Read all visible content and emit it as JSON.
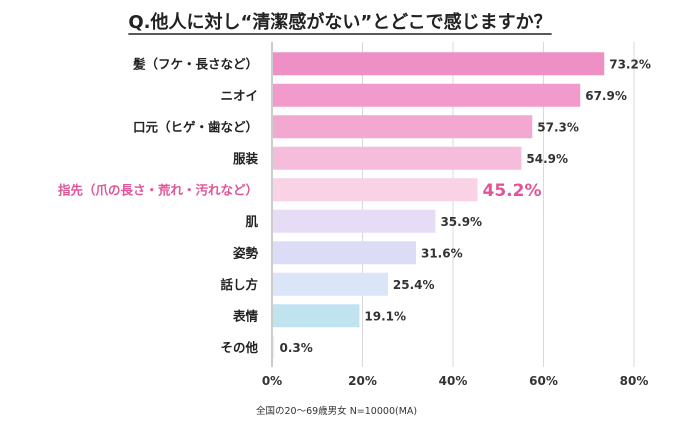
{
  "chart_data": {
    "type": "bar",
    "orientation": "horizontal",
    "title": "Q.他人に対し“清潔感がない”とどこで感じますか？",
    "categories": [
      "髪（フケ・長さなど）",
      "ニオイ",
      "口元（ヒゲ・歯など）",
      "服装",
      "指先（爪の長さ・荒れ・汚れなど）",
      "肌",
      "姿勢",
      "話し方",
      "表情",
      "その他"
    ],
    "values": [
      73.2,
      67.9,
      57.3,
      54.9,
      45.2,
      35.9,
      31.6,
      25.4,
      19.1,
      0.3
    ],
    "value_labels": [
      "73.2%",
      "67.9%",
      "57.3%",
      "54.9%",
      "45.2%",
      "35.9%",
      "31.6%",
      "25.4%",
      "19.1%",
      "0.3%"
    ],
    "highlight_index": 4,
    "bar_colors": [
      "#ee8fc6",
      "#f19acb",
      "#f3a8d2",
      "#f6bcdc",
      "#f9d2e6",
      "#e6dcf6",
      "#dcdcf7",
      "#dae6f7",
      "#bfe3ef",
      "#e6f2f9"
    ],
    "highlight_color": "#e0559a",
    "xlim": [
      0,
      80
    ],
    "xticks": [
      0,
      20,
      40,
      60,
      80
    ],
    "xtick_labels": [
      "0%",
      "20%",
      "40%",
      "60%",
      "80%"
    ],
    "xlabel": "",
    "ylabel": "",
    "grid": true,
    "note": "全国の20～69歳男女 N=10000(MA)"
  }
}
